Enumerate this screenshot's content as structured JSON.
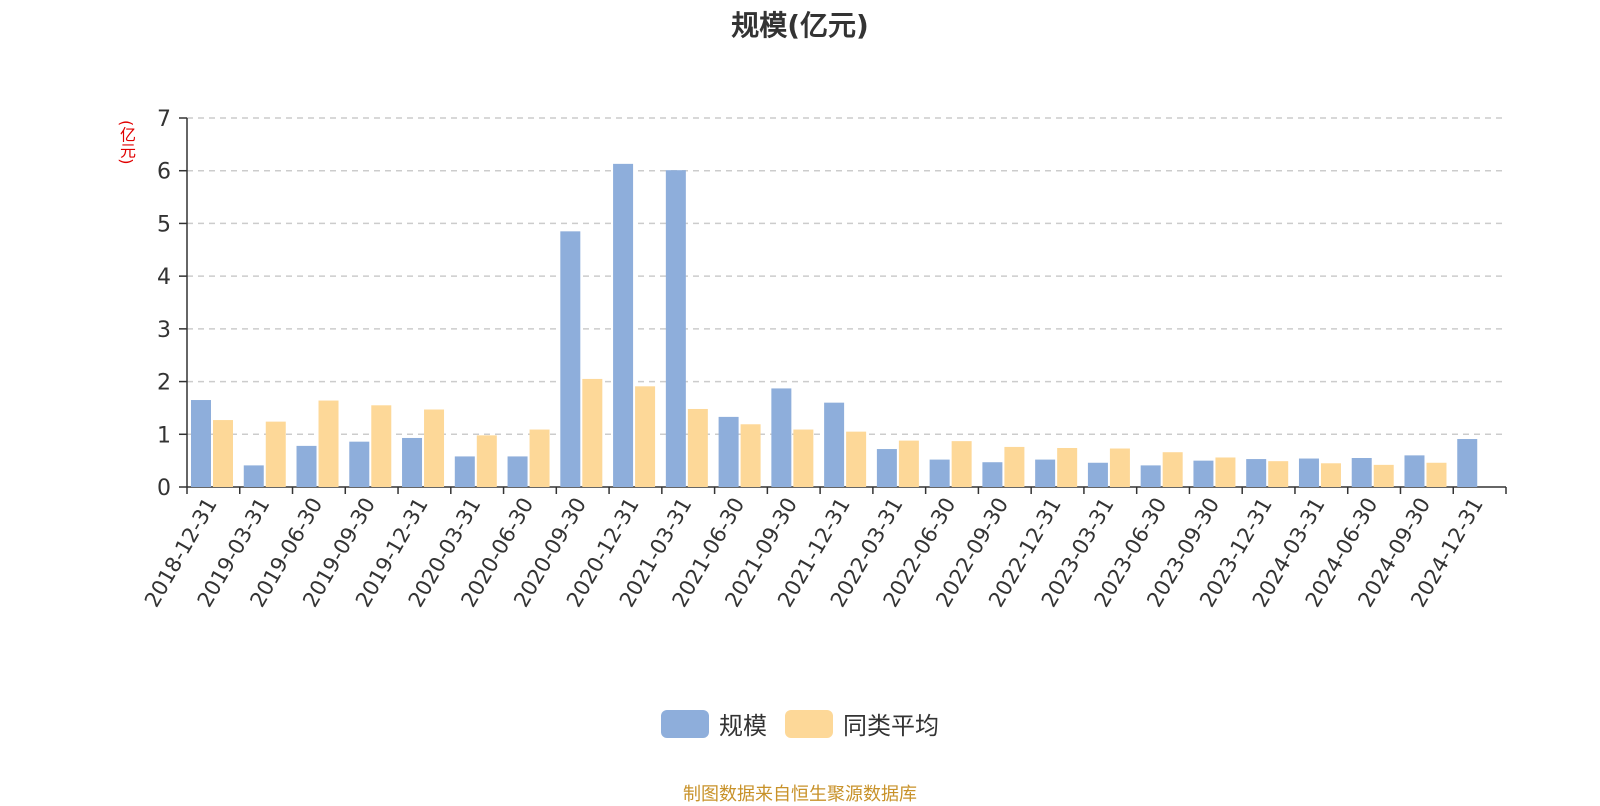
{
  "chart_data": {
    "type": "bar",
    "title": "规模(亿元)",
    "unit_label": "(亿元)",
    "ylim": [
      0,
      7
    ],
    "yticks": [
      0,
      1,
      2,
      3,
      4,
      5,
      6,
      7
    ],
    "grid": true,
    "legend_position": "bottom",
    "categories": [
      "2018-12-31",
      "2019-03-31",
      "2019-06-30",
      "2019-09-30",
      "2019-12-31",
      "2020-03-31",
      "2020-06-30",
      "2020-09-30",
      "2020-12-31",
      "2021-03-31",
      "2021-06-30",
      "2021-09-30",
      "2021-12-31",
      "2022-03-31",
      "2022-06-30",
      "2022-09-30",
      "2022-12-31",
      "2023-03-31",
      "2023-06-30",
      "2023-09-30",
      "2023-12-31",
      "2024-03-31",
      "2024-06-30",
      "2024-09-30",
      "2024-12-31"
    ],
    "series": [
      {
        "name": "规模",
        "color": "#8eaedb",
        "values": [
          1.65,
          0.41,
          0.78,
          0.86,
          0.93,
          0.58,
          0.58,
          4.85,
          6.13,
          6.01,
          1.33,
          1.87,
          1.6,
          0.72,
          0.52,
          0.47,
          0.52,
          0.46,
          0.41,
          0.5,
          0.53,
          0.54,
          0.55,
          0.6,
          0.91
        ]
      },
      {
        "name": "同类平均",
        "color": "#fdd898",
        "values": [
          1.27,
          1.24,
          1.64,
          1.55,
          1.47,
          0.98,
          1.09,
          2.05,
          1.91,
          1.48,
          1.19,
          1.09,
          1.05,
          0.88,
          0.87,
          0.76,
          0.74,
          0.73,
          0.66,
          0.56,
          0.49,
          0.45,
          0.42,
          0.46,
          null
        ]
      }
    ]
  },
  "source_text": "制图数据来自恒生聚源数据库"
}
